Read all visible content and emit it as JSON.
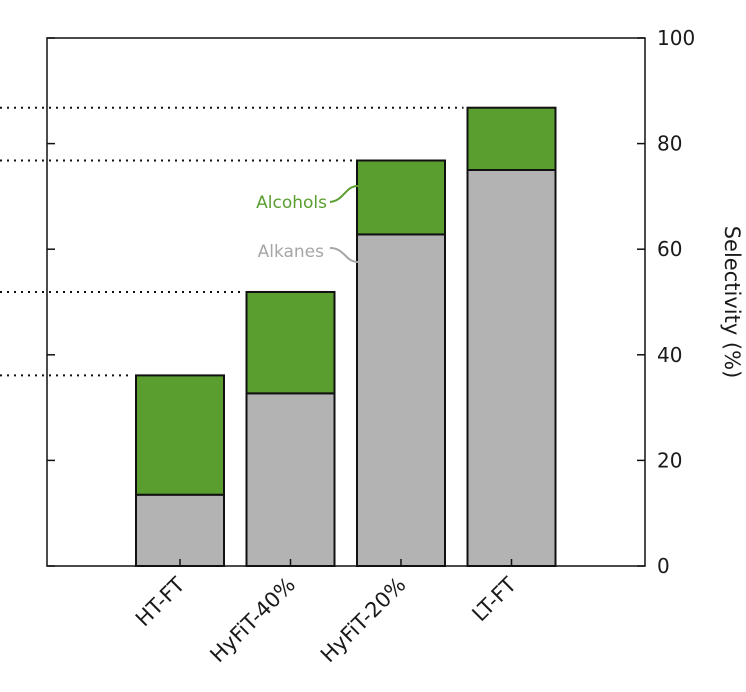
{
  "chart_data": {
    "type": "bar",
    "stacked": true,
    "categories": [
      "HT-FT",
      "HyFiT-40%",
      "HyFiT-20%",
      "LT-FT"
    ],
    "series": [
      {
        "name": "Alkanes",
        "values": [
          13.5,
          32.7,
          62.8,
          75.0
        ],
        "color": "#b3b3b3"
      },
      {
        "name": "Alcohols",
        "values": [
          22.6,
          19.2,
          14.0,
          11.8
        ],
        "color": "#5a9e2f"
      }
    ],
    "ylabel": "Selectivity (%)",
    "ylim": [
      0,
      100
    ],
    "yticks": [
      0,
      20,
      40,
      60,
      80,
      100
    ],
    "y_axis_side": "right",
    "grid": false,
    "reference_lines": "dotted horizontal lines at each bar total, extending left",
    "annotations": [
      {
        "text": "Alcohols",
        "color": "#5a9e2f",
        "points_to": "HyFiT-20% Alcohols"
      },
      {
        "text": "Alkanes",
        "color": "#a6a6a6",
        "points_to": "HyFiT-20% Alkanes"
      }
    ]
  }
}
